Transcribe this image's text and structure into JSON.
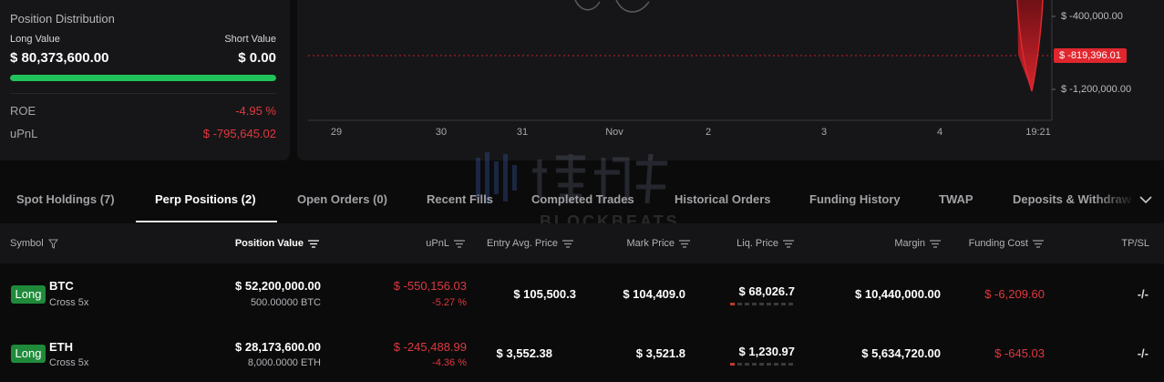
{
  "distribution": {
    "title": "Position Distribution",
    "long_label": "Long Value",
    "short_label": "Short Value",
    "long_value": "$ 80,373,600.00",
    "short_value": "$ 0.00",
    "long_share": 1.0,
    "roe_label": "ROE",
    "roe_value": "-4.95 %",
    "upnl_label": "uPnL",
    "upnl_value": "$ -795,645.02"
  },
  "pnl_chart": {
    "x_ticks": [
      "29",
      "30",
      "31",
      "Nov",
      "2",
      "3",
      "4",
      "19:21"
    ],
    "y_ticks": [
      "$ -400,000.00",
      "$ -1,200,000.00"
    ],
    "current_label": "$ -819,396.01",
    "colors": {
      "line": "#c8202a",
      "grid": "#2a2a2e"
    }
  },
  "tabs": [
    {
      "label": "Spot Holdings (7)",
      "active": false
    },
    {
      "label": "Perp Positions (2)",
      "active": true
    },
    {
      "label": "Open Orders (0)",
      "active": false
    },
    {
      "label": "Recent Fills",
      "active": false
    },
    {
      "label": "Completed Trades",
      "active": false
    },
    {
      "label": "Historical Orders",
      "active": false
    },
    {
      "label": "Funding History",
      "active": false
    },
    {
      "label": "TWAP",
      "active": false
    },
    {
      "label": "Deposits & Withdraw",
      "active": false
    }
  ],
  "table": {
    "headers": {
      "symbol": "Symbol",
      "position_value": "Position Value",
      "upnl": "uPnL",
      "entry": "Entry Avg. Price",
      "mark": "Mark Price",
      "liq": "Liq. Price",
      "margin": "Margin",
      "funding": "Funding Cost",
      "tpsl": "TP/SL"
    },
    "rows": [
      {
        "side": "Long",
        "symbol": "BTC",
        "leverage": "Cross 5x",
        "position_value": "$ 52,200,000.00",
        "size": "500.00000 BTC",
        "upnl": "$ -550,156.03",
        "upnl_pct": "-5.27 %",
        "entry": "$ 105,500.3",
        "mark": "$ 104,409.0",
        "liq": "$ 68,026.7",
        "margin": "$ 10,440,000.00",
        "funding": "$ -6,209.60",
        "tpsl": "-/-"
      },
      {
        "side": "Long",
        "symbol": "ETH",
        "leverage": "Cross 5x",
        "position_value": "$ 28,173,600.00",
        "size": "8,000.0000 ETH",
        "upnl": "$ -245,488.99",
        "upnl_pct": "-4.36 %",
        "entry": "$ 3,552.38",
        "mark": "$ 3,521.8",
        "liq": "$ 1,230.97",
        "margin": "$ 5,634,720.00",
        "funding": "$ -645.03",
        "tpsl": "-/-"
      }
    ]
  },
  "watermark": {
    "text": "BLOCKBEATS"
  },
  "colors": {
    "long": "#22c25a",
    "negative": "#e0383e",
    "background": "#0b0b0c",
    "panel": "#161618"
  }
}
